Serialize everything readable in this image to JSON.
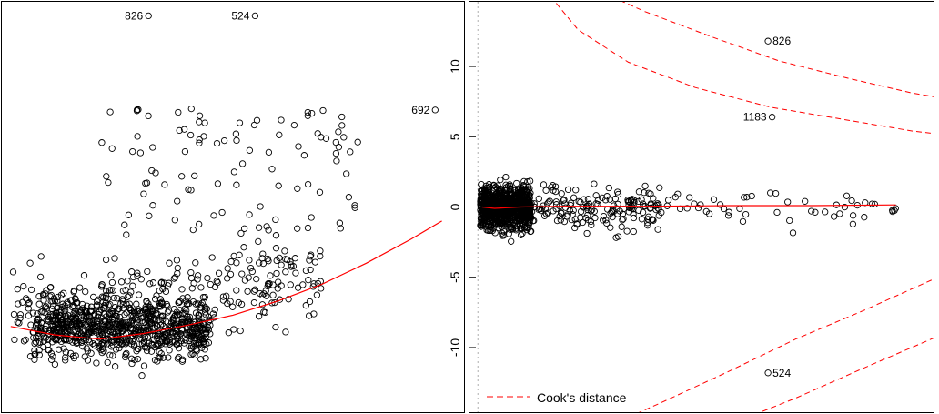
{
  "chart_data": [
    {
      "type": "scatter",
      "title": "",
      "xlabel": "",
      "ylabel": "",
      "y_ticks": [],
      "smoother_color": "#ff0000",
      "point_labels": [
        {
          "text": "826",
          "x": 0.31,
          "y": 13.6
        },
        {
          "text": "524",
          "x": 0.55,
          "y": 13.6
        },
        {
          "text": "692",
          "x": 0.955,
          "y": 6.9
        }
      ],
      "smoother": [
        [
          0.0,
          -8.5
        ],
        [
          0.1,
          -9.1
        ],
        [
          0.2,
          -9.4
        ],
        [
          0.3,
          -9.0
        ],
        [
          0.4,
          -8.4
        ],
        [
          0.5,
          -7.7
        ],
        [
          0.6,
          -6.7
        ],
        [
          0.7,
          -5.5
        ],
        [
          0.8,
          -4.0
        ],
        [
          0.9,
          -2.3
        ],
        [
          0.97,
          -1.0
        ]
      ],
      "xlim": [
        -0.02,
        1.02
      ],
      "ylim": [
        -14.6,
        14.6
      ]
    },
    {
      "type": "scatter",
      "title": "",
      "xlabel": "",
      "ylabel": "",
      "y_ticks": [
        -10,
        -5,
        0,
        5,
        10
      ],
      "ylim": [
        -14.6,
        14.6
      ],
      "xlim": [
        -0.01,
        0.545
      ],
      "smoother_color": "#ff0000",
      "contour_color": "#ff0000",
      "legend": {
        "label": "Cook's distance",
        "position": "bottom-left"
      },
      "point_labels": [
        {
          "text": "826",
          "x": 0.347,
          "y": 11.8
        },
        {
          "text": "1183",
          "x": 0.352,
          "y": 6.4
        },
        {
          "text": "524",
          "x": 0.347,
          "y": -11.8
        }
      ],
      "smoother": [
        [
          0.005,
          0.0
        ],
        [
          0.02,
          -0.1
        ],
        [
          0.05,
          0.0
        ],
        [
          0.1,
          0.05
        ],
        [
          0.2,
          0.05
        ],
        [
          0.3,
          0.1
        ],
        [
          0.4,
          0.1
        ],
        [
          0.5,
          0.15
        ]
      ],
      "cooks_contours": [
        {
          "sign": 1,
          "points": [
            [
              0.08,
              15.5
            ],
            [
              0.12,
              12.6
            ],
            [
              0.18,
              10.3
            ],
            [
              0.26,
              8.5
            ],
            [
              0.35,
              7.1
            ],
            [
              0.44,
              6.2
            ],
            [
              0.52,
              5.4
            ],
            [
              0.55,
              5.2
            ]
          ]
        },
        {
          "sign": 1,
          "points": [
            [
              0.14,
              15.5
            ],
            [
              0.2,
              13.9
            ],
            [
              0.28,
              12.1
            ],
            [
              0.36,
              10.4
            ],
            [
              0.44,
              9.2
            ],
            [
              0.52,
              8.1
            ],
            [
              0.55,
              7.8
            ]
          ]
        },
        {
          "sign": -1,
          "points": [
            [
              0.16,
              -15.5
            ],
            [
              0.22,
              -13.9
            ],
            [
              0.3,
              -11.7
            ],
            [
              0.38,
              -9.4
            ],
            [
              0.46,
              -7.4
            ],
            [
              0.55,
              -5.0
            ]
          ]
        },
        {
          "sign": -1,
          "points": [
            [
              0.3,
              -15.5
            ],
            [
              0.38,
              -13.6
            ],
            [
              0.46,
              -11.5
            ],
            [
              0.55,
              -9.2
            ]
          ]
        }
      ]
    }
  ]
}
